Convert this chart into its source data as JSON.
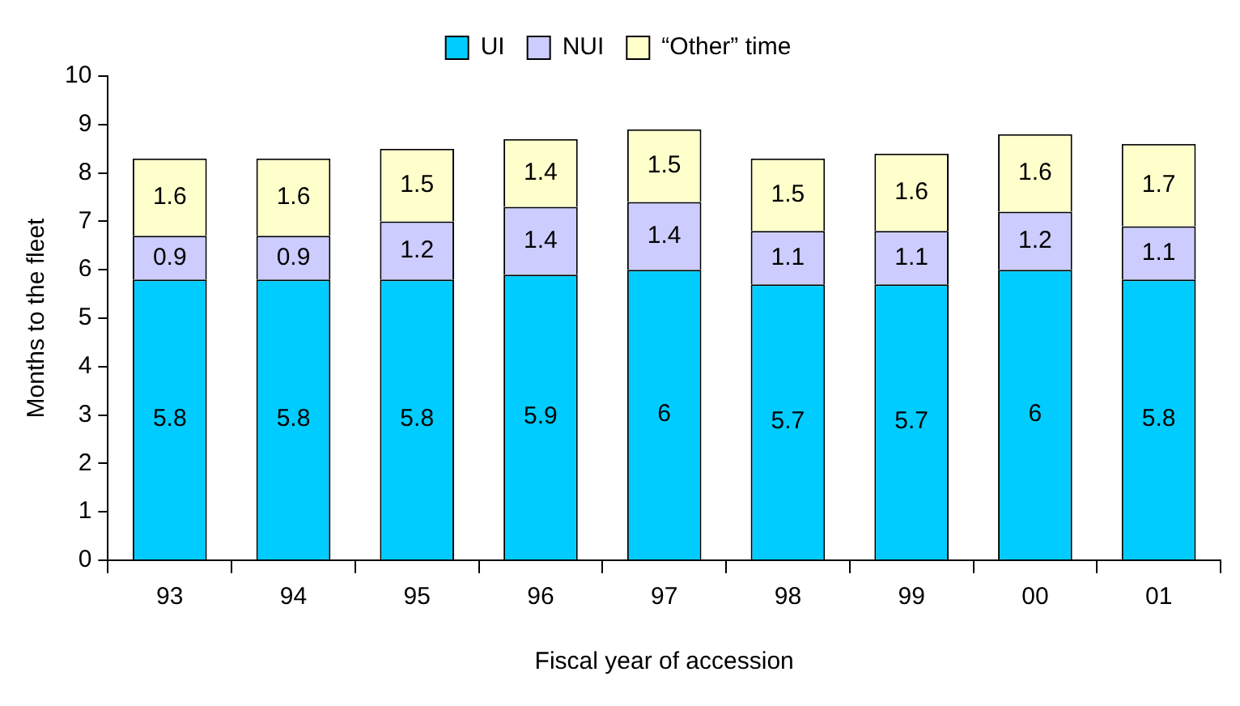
{
  "chart_data": {
    "type": "bar",
    "stacked": true,
    "xlabel": "Fiscal year of accession",
    "ylabel": "Months to the fleet",
    "categories": [
      "93",
      "94",
      "95",
      "96",
      "97",
      "98",
      "99",
      "00",
      "01"
    ],
    "series": [
      {
        "name": "UI",
        "color": "#00ccff",
        "values": [
          5.8,
          5.8,
          5.8,
          5.9,
          6,
          5.7,
          5.7,
          6,
          5.8
        ]
      },
      {
        "name": "NUI",
        "color": "#ccccff",
        "values": [
          0.9,
          0.9,
          1.2,
          1.4,
          1.4,
          1.1,
          1.1,
          1.2,
          1.1
        ]
      },
      {
        "name": "“Other” time",
        "color": "#ffffcc",
        "values": [
          1.6,
          1.6,
          1.5,
          1.4,
          1.5,
          1.5,
          1.6,
          1.6,
          1.7
        ]
      }
    ],
    "ylim": [
      0,
      10
    ],
    "yticks": [
      0,
      1,
      2,
      3,
      4,
      5,
      6,
      7,
      8,
      9,
      10
    ],
    "legend": "top",
    "data_labels": true
  }
}
